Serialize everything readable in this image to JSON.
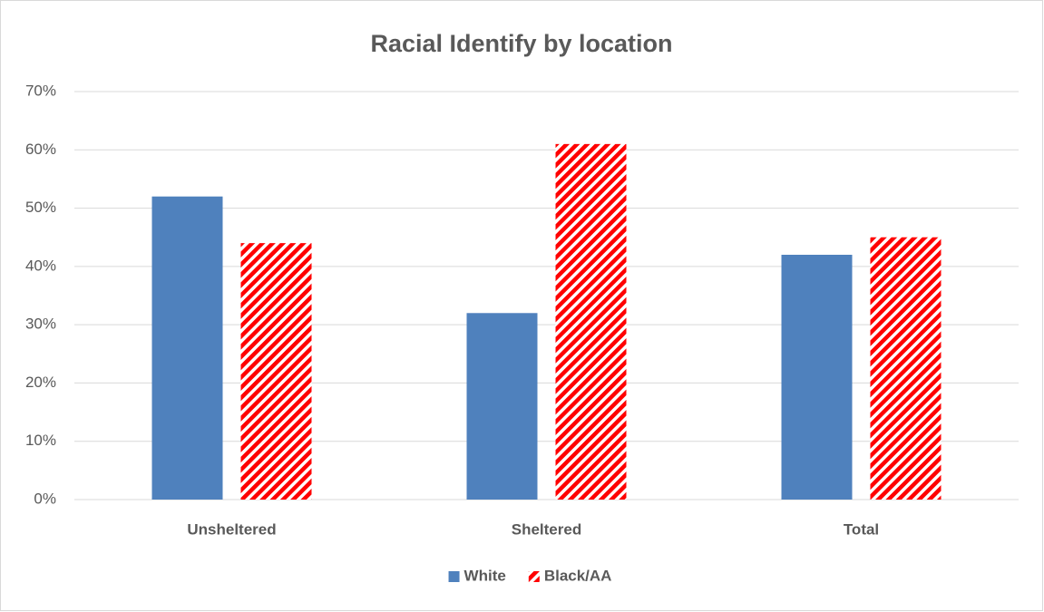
{
  "chart_data": {
    "type": "bar",
    "title": "Racial Identify by location",
    "categories": [
      "Unsheltered",
      "Sheltered",
      "Total"
    ],
    "series": [
      {
        "name": "White",
        "color": "#4f81bd",
        "values": [
          52,
          32,
          42
        ]
      },
      {
        "name": "Black/AA",
        "color": "#ff0000",
        "hatch": "diagonal",
        "values": [
          44,
          61,
          45
        ]
      }
    ],
    "ylim": [
      0,
      70
    ],
    "yticks": [
      {
        "value": 0,
        "label": "0%"
      },
      {
        "value": 10,
        "label": "10%"
      },
      {
        "value": 20,
        "label": "20%"
      },
      {
        "value": 30,
        "label": "30%"
      },
      {
        "value": 40,
        "label": "40%"
      },
      {
        "value": 50,
        "label": "50%"
      },
      {
        "value": 60,
        "label": "60%"
      },
      {
        "value": 70,
        "label": "70%"
      }
    ],
    "grid": true,
    "legend": "bottom"
  }
}
